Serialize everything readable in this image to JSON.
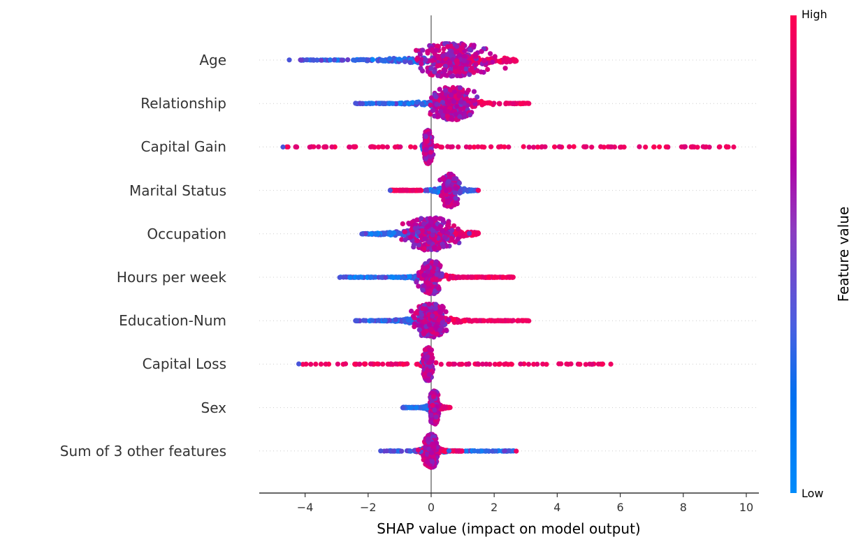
{
  "chart_data": {
    "type": "scatter",
    "subtype": "shap_beeswarm_summary",
    "xlabel": "SHAP value (impact on model output)",
    "ylabel": "",
    "xlim": [
      -5.45,
      10.35
    ],
    "xticks": [
      -4,
      -2,
      0,
      2,
      4,
      6,
      8,
      10
    ],
    "xtick_labels": [
      "−4",
      "−2",
      "0",
      "2",
      "4",
      "6",
      "8",
      "10"
    ],
    "grid": "horizontal dotted per feature row",
    "colorbar": {
      "label": "Feature value",
      "high_label": "High",
      "low_label": "Low",
      "high_color": "#ff0051",
      "mid_color": "#b400a5",
      "low_color": "#008bfb"
    },
    "features": [
      {
        "name": "Age",
        "min": -4.5,
        "max": 2.7,
        "low_range": [
          -4.2,
          0.2
        ],
        "high_range": [
          0.1,
          2.7
        ],
        "mass_center": 0.7,
        "mass_width": 0.9
      },
      {
        "name": "Relationship",
        "min": -2.4,
        "max": 3.1,
        "low_range": [
          -2.4,
          0.3
        ],
        "high_range": [
          0.2,
          3.1
        ],
        "mass_center": 0.7,
        "mass_width": 0.5
      },
      {
        "name": "Capital Gain",
        "min": -4.7,
        "max": 9.6,
        "low_range": [
          -0.3,
          0.0
        ],
        "high_range": [
          -4.7,
          9.6
        ],
        "mass_center": -0.1,
        "mass_width": 0.1
      },
      {
        "name": "Marital Status",
        "min": -1.3,
        "max": 1.5,
        "low_range": [
          -0.2,
          1.5
        ],
        "high_range": [
          -1.3,
          -0.3
        ],
        "mass_center": 0.6,
        "mass_width": 0.2
      },
      {
        "name": "Occupation",
        "min": -2.2,
        "max": 1.5,
        "low_range": [
          -2.2,
          0.0
        ],
        "high_range": [
          0.3,
          1.5
        ],
        "mass_center": 0.0,
        "mass_width": 0.6
      },
      {
        "name": "Hours per week",
        "min": -2.9,
        "max": 2.6,
        "low_range": [
          -2.9,
          -0.3
        ],
        "high_range": [
          0.2,
          2.6
        ],
        "mass_center": 0.0,
        "mass_width": 0.25
      },
      {
        "name": "Education-Num",
        "min": -2.4,
        "max": 3.1,
        "low_range": [
          -2.4,
          -0.2
        ],
        "high_range": [
          0.2,
          3.1
        ],
        "mass_center": 0.0,
        "mass_width": 0.4
      },
      {
        "name": "Capital Loss",
        "min": -4.2,
        "max": 5.7,
        "low_range": [
          -0.3,
          0.0
        ],
        "high_range": [
          -4.2,
          5.7
        ],
        "mass_center": -0.1,
        "mass_width": 0.1
      },
      {
        "name": "Sex",
        "min": -0.9,
        "max": 0.6,
        "low_range": [
          -0.9,
          0.0
        ],
        "high_range": [
          0.0,
          0.6
        ],
        "mass_center": 0.1,
        "mass_width": 0.1
      },
      {
        "name": "Sum of 3 other features",
        "min": -1.6,
        "max": 2.7,
        "low_range": [
          -1.6,
          2.7
        ],
        "high_range": [
          -0.5,
          1.0
        ],
        "mass_center": 0.0,
        "mass_width": 0.15
      }
    ]
  },
  "labels": {
    "features": [
      "Age",
      "Relationship",
      "Capital Gain",
      "Marital Status",
      "Occupation",
      "Hours per week",
      "Education-Num",
      "Capital Loss",
      "Sex",
      "Sum of 3 other features"
    ],
    "xticks": [
      "−4",
      "−2",
      "0",
      "2",
      "4",
      "6",
      "8",
      "10"
    ],
    "xlabel": "SHAP value (impact on model output)",
    "colorbar_high": "High",
    "colorbar_low": "Low",
    "colorbar_title": "Feature value"
  }
}
